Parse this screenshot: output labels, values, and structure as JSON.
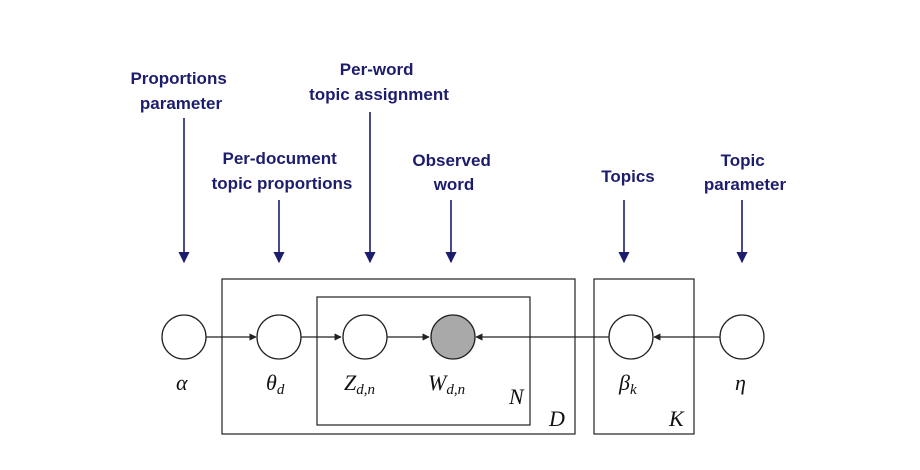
{
  "diagram": {
    "annotations": {
      "alpha": [
        "Proportions",
        "parameter"
      ],
      "theta": [
        "Per-document",
        "topic proportions"
      ],
      "z": [
        "Per-word",
        "topic assignment"
      ],
      "w": [
        "Observed",
        "word"
      ],
      "beta": [
        "Topics"
      ],
      "eta": [
        "Topic",
        "parameter"
      ]
    },
    "nodes": {
      "alpha": {
        "symbol": "α",
        "observed": false
      },
      "theta": {
        "symbol": "θ",
        "subscript": "d",
        "observed": false
      },
      "z": {
        "symbol": "Z",
        "subscript": "d,n",
        "observed": false
      },
      "w": {
        "symbol": "W",
        "subscript": "d,n",
        "observed": true
      },
      "beta": {
        "symbol": "β",
        "subscript": "k",
        "observed": false
      },
      "eta": {
        "symbol": "η",
        "observed": false
      }
    },
    "plates": {
      "words": "N",
      "documents": "D",
      "topics": "K"
    },
    "colors": {
      "annotation": "#1d1d6e",
      "observed_fill": "#a9a9a9",
      "line": "#222222"
    }
  }
}
